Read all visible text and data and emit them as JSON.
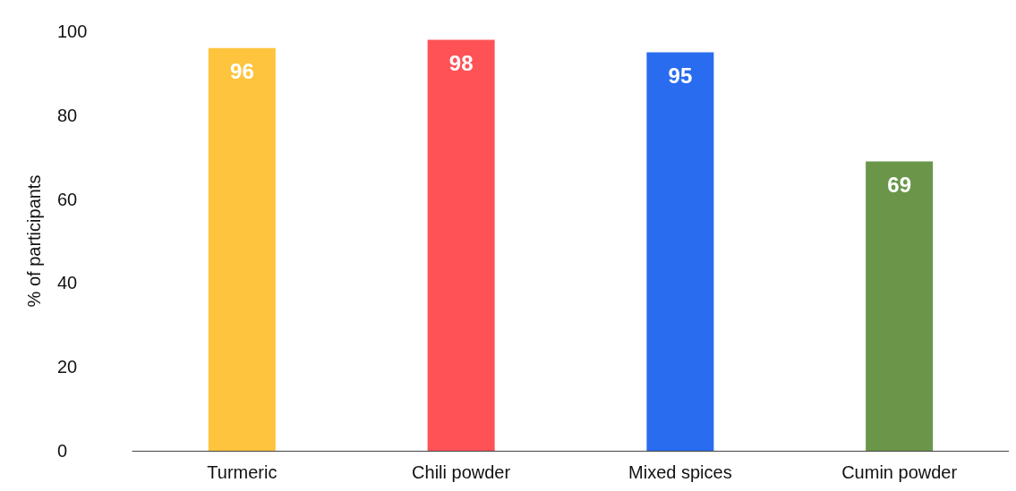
{
  "chart_data": {
    "type": "bar",
    "ylabel": "% of participants",
    "categories": [
      "Turmeric",
      "Chili powder",
      "Mixed spices",
      "Cumin powder"
    ],
    "values": [
      96,
      98,
      95,
      69
    ],
    "colors": [
      "#ffc43d",
      "#ff5257",
      "#2a6cef",
      "#6b964a"
    ],
    "ylim": [
      0,
      100
    ],
    "yticks": [
      0,
      20,
      40,
      60,
      80,
      100
    ],
    "grid": false,
    "data_labels": true
  }
}
